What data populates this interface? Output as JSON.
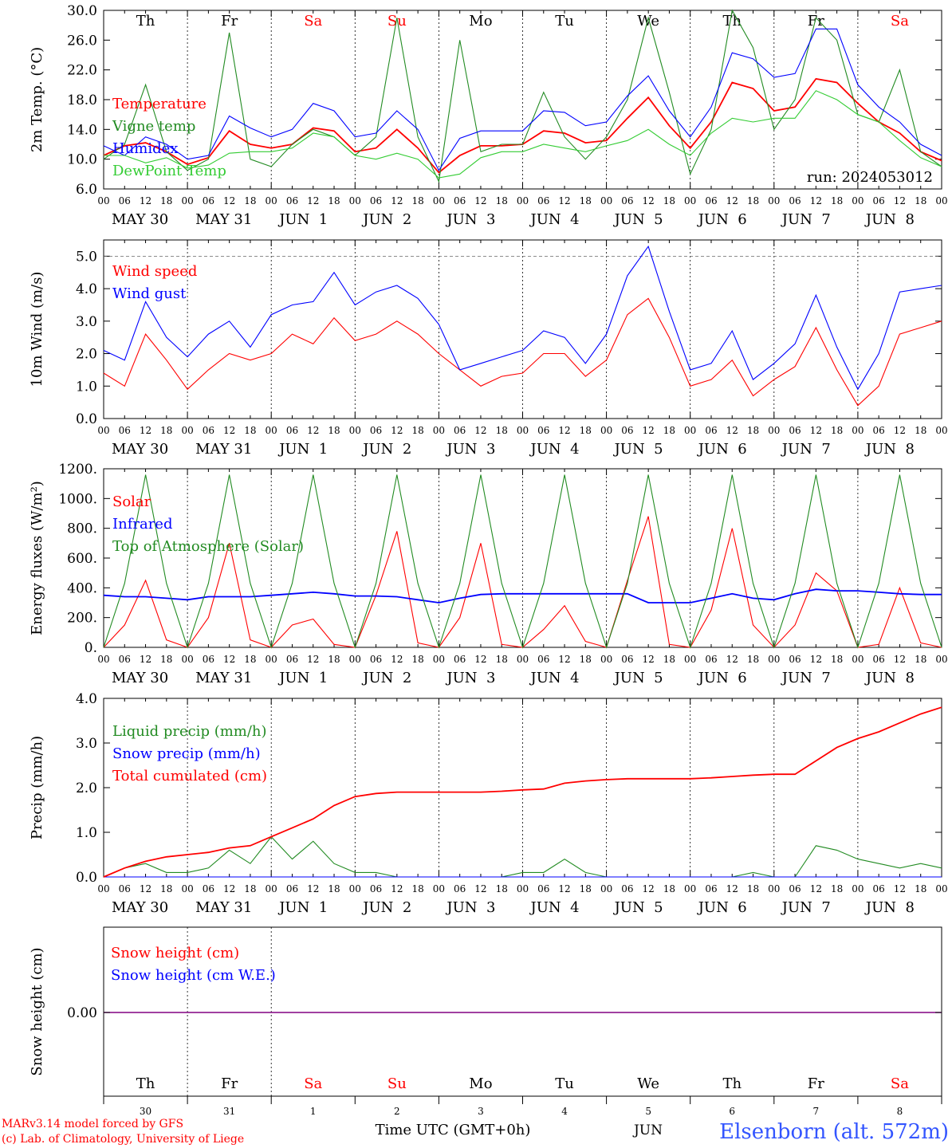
{
  "meteogram": {
    "days": [
      "Th",
      "Fr",
      "Sa",
      "Su",
      "Mo",
      "Tu",
      "We",
      "Th",
      "Fr",
      "Sa"
    ],
    "weekend_days": [
      "Sa",
      "Su"
    ],
    "date_labels": [
      "MAY 30",
      "MAY 31",
      "JUN  1",
      "JUN  2",
      "JUN  3",
      "JUN  4",
      "JUN  5",
      "JUN  6",
      "JUN  7",
      "JUN  8"
    ],
    "hour_ticks": [
      "00",
      "06",
      "12",
      "18"
    ],
    "day_numbers": [
      "30",
      "31",
      "1",
      "2",
      "3",
      "4",
      "5",
      "6",
      "7",
      "8"
    ],
    "month_label": "JUN",
    "run_label": "run: 2024053012",
    "xlabel": "Time UTC (GMT+0h)",
    "station": "Elsenborn (alt. 572m)",
    "credits": [
      "MARv3.14 model forced by GFS",
      "(c) Lab. of Climatology, University of Liege"
    ],
    "colors": {
      "red": "#ff0000",
      "green": "#228b22",
      "blue": "#0000ff",
      "lightgreen": "#33cc33",
      "purple": "#800080",
      "station": "#3355ff"
    }
  },
  "chart_data": [
    {
      "type": "line",
      "ylabel": "2m Temp. (°C)",
      "ylim": [
        6.0,
        30.0
      ],
      "yticks": [
        "6.0",
        "10.0",
        "14.0",
        "18.0",
        "22.0",
        "26.0",
        "30.0"
      ],
      "x_unit": "hours since MAY 30 00 UTC",
      "x": [
        0,
        6,
        12,
        18,
        24,
        30,
        36,
        42,
        48,
        54,
        60,
        66,
        72,
        78,
        84,
        90,
        96,
        102,
        108,
        114,
        120,
        126,
        132,
        138,
        144,
        150,
        156,
        162,
        168,
        174,
        180,
        186,
        192,
        198,
        204,
        210,
        216,
        222,
        228,
        234,
        240
      ],
      "series": [
        {
          "name": "Temperature",
          "color": "#ff0000",
          "values": [
            10.5,
            11.8,
            12.2,
            11.0,
            9.3,
            10.2,
            13.8,
            12.0,
            11.5,
            12.0,
            14.2,
            13.8,
            11.0,
            11.5,
            14.0,
            11.5,
            8.2,
            10.5,
            11.8,
            11.8,
            12.0,
            13.8,
            13.5,
            12.2,
            12.5,
            15.5,
            18.3,
            14.5,
            11.5,
            15.0,
            20.3,
            19.5,
            16.5,
            17.0,
            20.8,
            20.3,
            17.5,
            15.0,
            13.5,
            11.0,
            9.8
          ]
        },
        {
          "name": "Vigne temp",
          "color": "#228b22",
          "values": [
            10.0,
            12.0,
            20.0,
            11.0,
            8.5,
            10.0,
            27.0,
            10.0,
            9.0,
            12.0,
            14.0,
            13.0,
            10.5,
            13.0,
            29.0,
            13.0,
            7.0,
            26.0,
            11.0,
            12.0,
            12.0,
            19.0,
            13.0,
            10.0,
            13.0,
            18.0,
            29.0,
            19.0,
            8.0,
            14.0,
            30.0,
            25.0,
            14.0,
            18.0,
            29.0,
            26.0,
            16.0,
            15.0,
            22.0,
            11.0,
            9.0
          ]
        },
        {
          "name": "Humidex",
          "color": "#0000ff",
          "values": [
            11.8,
            10.5,
            13.0,
            12.0,
            10.0,
            10.5,
            15.8,
            14.2,
            13.0,
            14.0,
            17.5,
            16.5,
            13.0,
            13.5,
            16.5,
            14.0,
            8.5,
            12.8,
            13.8,
            13.8,
            13.8,
            16.5,
            16.3,
            14.5,
            15.0,
            18.5,
            21.2,
            16.5,
            13.0,
            17.0,
            24.3,
            23.5,
            21.0,
            21.5,
            27.5,
            27.5,
            20.0,
            17.0,
            15.0,
            12.0,
            10.5
          ]
        },
        {
          "name": "DewPoint Temp",
          "color": "#33cc33",
          "values": [
            10.5,
            10.5,
            9.5,
            10.2,
            8.8,
            9.2,
            10.8,
            11.0,
            11.0,
            11.5,
            13.5,
            13.0,
            10.5,
            10.0,
            10.8,
            10.0,
            7.5,
            8.0,
            10.2,
            11.0,
            11.0,
            12.0,
            11.5,
            11.0,
            11.8,
            12.5,
            14.0,
            12.0,
            10.5,
            13.5,
            15.5,
            15.0,
            15.5,
            15.5,
            19.2,
            18.0,
            16.0,
            15.0,
            12.5,
            10.2,
            9.0
          ]
        }
      ]
    },
    {
      "type": "line",
      "ylabel": "10m Wind (m/s)",
      "ylim": [
        0.0,
        5.5
      ],
      "yticks": [
        "0.0",
        "1.0",
        "2.0",
        "3.0",
        "4.0",
        "5.0"
      ],
      "reference_line": 5.0,
      "x": [
        0,
        6,
        12,
        18,
        24,
        30,
        36,
        42,
        48,
        54,
        60,
        66,
        72,
        78,
        84,
        90,
        96,
        102,
        108,
        114,
        120,
        126,
        132,
        138,
        144,
        150,
        156,
        162,
        168,
        174,
        180,
        186,
        192,
        198,
        204,
        210,
        216,
        222,
        228,
        234,
        240
      ],
      "series": [
        {
          "name": "Wind speed",
          "color": "#ff0000",
          "values": [
            1.4,
            1.0,
            2.6,
            1.8,
            0.9,
            1.5,
            2.0,
            1.8,
            2.0,
            2.6,
            2.3,
            3.1,
            2.4,
            2.6,
            3.0,
            2.6,
            2.0,
            1.5,
            1.0,
            1.3,
            1.4,
            2.0,
            2.0,
            1.3,
            1.8,
            3.2,
            3.7,
            2.5,
            1.0,
            1.2,
            1.8,
            0.7,
            1.2,
            1.6,
            2.8,
            1.5,
            0.4,
            1.0,
            2.6,
            2.8,
            3.0
          ]
        },
        {
          "name": "Wind gust",
          "color": "#0000ff",
          "values": [
            2.1,
            1.8,
            3.6,
            2.5,
            1.9,
            2.6,
            3.0,
            2.2,
            3.2,
            3.5,
            3.6,
            4.5,
            3.5,
            3.9,
            4.1,
            3.7,
            2.9,
            1.5,
            1.7,
            1.9,
            2.1,
            2.7,
            2.5,
            1.7,
            2.6,
            4.4,
            5.3,
            3.3,
            1.5,
            1.7,
            2.7,
            1.2,
            1.7,
            2.3,
            3.8,
            2.2,
            0.9,
            2.0,
            3.9,
            4.0,
            4.1
          ]
        }
      ]
    },
    {
      "type": "line",
      "ylabel": "Energy fluxes (W/m²)",
      "ylim": [
        0,
        1200
      ],
      "yticks": [
        "0.",
        "200.",
        "400.",
        "600.",
        "800.",
        "1000.",
        "1200."
      ],
      "x": [
        0,
        6,
        12,
        18,
        24,
        30,
        36,
        42,
        48,
        54,
        60,
        66,
        72,
        78,
        84,
        90,
        96,
        102,
        108,
        114,
        120,
        126,
        132,
        138,
        144,
        150,
        156,
        162,
        168,
        174,
        180,
        186,
        192,
        198,
        204,
        210,
        216,
        222,
        228,
        234,
        240
      ],
      "series": [
        {
          "name": "Solar",
          "color": "#ff0000",
          "values": [
            0,
            150,
            450,
            50,
            0,
            200,
            700,
            50,
            0,
            150,
            190,
            20,
            0,
            350,
            780,
            30,
            0,
            200,
            700,
            20,
            0,
            120,
            280,
            40,
            0,
            450,
            880,
            20,
            0,
            250,
            800,
            150,
            0,
            150,
            500,
            380,
            0,
            20,
            400,
            30,
            0
          ]
        },
        {
          "name": "Infrared",
          "color": "#0000ff",
          "values": [
            350,
            340,
            340,
            330,
            320,
            340,
            340,
            340,
            350,
            360,
            370,
            360,
            345,
            345,
            340,
            320,
            300,
            330,
            355,
            360,
            360,
            360,
            360,
            360,
            360,
            360,
            300,
            300,
            300,
            330,
            360,
            330,
            320,
            360,
            390,
            380,
            380,
            370,
            360,
            355,
            355
          ]
        },
        {
          "name": "Top of Atmosphere (Solar)",
          "color": "#228b22",
          "values": [
            0,
            430,
            1160,
            430,
            0,
            430,
            1160,
            430,
            0,
            430,
            1160,
            430,
            0,
            430,
            1160,
            430,
            0,
            430,
            1160,
            430,
            0,
            430,
            1160,
            430,
            0,
            430,
            1160,
            430,
            0,
            430,
            1160,
            430,
            0,
            430,
            1160,
            430,
            0,
            430,
            1160,
            430,
            0
          ]
        }
      ]
    },
    {
      "type": "line",
      "ylabel": "Precip (mm/h)",
      "ylim": [
        0.0,
        4.0
      ],
      "yticks": [
        "0.0",
        "1.0",
        "2.0",
        "3.0",
        "4.0"
      ],
      "x": [
        0,
        6,
        12,
        18,
        24,
        30,
        36,
        42,
        48,
        54,
        60,
        66,
        72,
        78,
        84,
        90,
        96,
        102,
        108,
        114,
        120,
        126,
        132,
        138,
        144,
        150,
        156,
        162,
        168,
        174,
        180,
        186,
        192,
        198,
        204,
        210,
        216,
        222,
        228,
        234,
        240
      ],
      "series": [
        {
          "name": "Liquid precip (mm/h)",
          "color": "#228b22",
          "values": [
            0.0,
            0.2,
            0.3,
            0.1,
            0.1,
            0.2,
            0.6,
            0.3,
            0.9,
            0.4,
            0.8,
            0.3,
            0.1,
            0.1,
            0.0,
            0.0,
            0.0,
            0.0,
            0.0,
            0.0,
            0.1,
            0.1,
            0.4,
            0.1,
            0.0,
            0.0,
            0.0,
            0.0,
            0.0,
            0.0,
            0.0,
            0.1,
            0.0,
            0.0,
            0.7,
            0.6,
            0.4,
            0.3,
            0.2,
            0.3,
            0.2
          ]
        },
        {
          "name": "Snow precip (mm/h)",
          "color": "#0000ff",
          "values": [
            0,
            0,
            0,
            0,
            0,
            0,
            0,
            0,
            0,
            0,
            0,
            0,
            0,
            0,
            0,
            0,
            0,
            0,
            0,
            0,
            0,
            0,
            0,
            0,
            0,
            0,
            0,
            0,
            0,
            0,
            0,
            0,
            0,
            0,
            0,
            0,
            0,
            0,
            0,
            0,
            0
          ]
        },
        {
          "name": "Total cumulated (cm)",
          "color": "#ff0000",
          "values": [
            0.0,
            0.2,
            0.35,
            0.45,
            0.5,
            0.55,
            0.65,
            0.7,
            0.9,
            1.1,
            1.3,
            1.6,
            1.8,
            1.87,
            1.9,
            1.9,
            1.9,
            1.9,
            1.9,
            1.92,
            1.95,
            1.97,
            2.1,
            2.15,
            2.18,
            2.2,
            2.2,
            2.2,
            2.2,
            2.22,
            2.25,
            2.28,
            2.3,
            2.3,
            2.6,
            2.9,
            3.1,
            3.25,
            3.45,
            3.65,
            3.8
          ]
        }
      ]
    },
    {
      "type": "line",
      "ylabel": "Snow height (cm)",
      "yticks": [
        "0.00"
      ],
      "series": [
        {
          "name": "Snow height (cm)",
          "color": "#ff0000",
          "values": [
            0,
            0
          ]
        },
        {
          "name": "Snow height (cm W.E.)",
          "color": "#0000ff",
          "values": [
            0,
            0
          ]
        }
      ]
    }
  ]
}
